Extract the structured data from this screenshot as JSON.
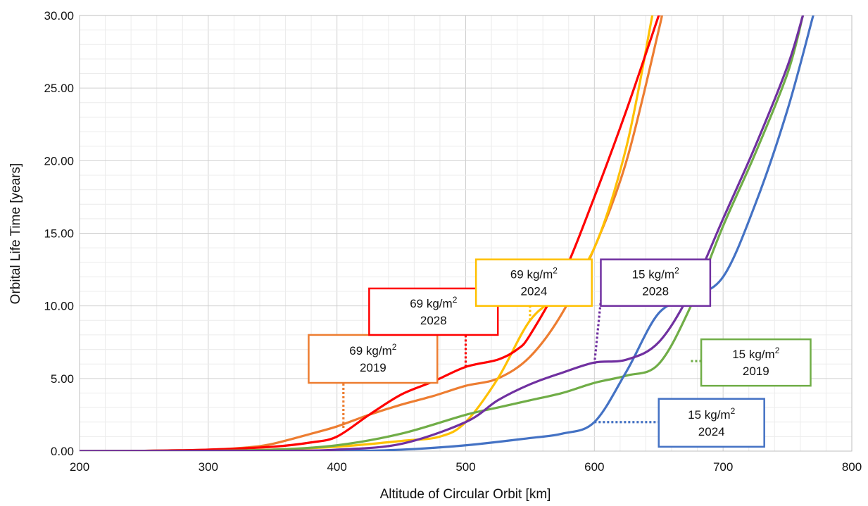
{
  "chart_data": {
    "type": "line",
    "xlabel": "Altitude of Circular Orbit [km]",
    "ylabel": "Orbital Life Time [years]",
    "xlim": [
      200,
      800
    ],
    "ylim": [
      0,
      30
    ],
    "x_ticks": [
      "200",
      "300",
      "400",
      "500",
      "600",
      "700",
      "800"
    ],
    "y_ticks": [
      "0.00",
      "5.00",
      "10.00",
      "15.00",
      "20.00",
      "25.00",
      "30.00"
    ],
    "grid": true,
    "series": [
      {
        "name": "69 kg/m2 2019",
        "color": "#ED7D31",
        "points": [
          [
            200,
            0
          ],
          [
            250,
            0.02
          ],
          [
            300,
            0.1
          ],
          [
            330,
            0.25
          ],
          [
            350,
            0.5
          ],
          [
            380,
            1.2
          ],
          [
            400,
            1.7
          ],
          [
            425,
            2.5
          ],
          [
            450,
            3.2
          ],
          [
            475,
            3.8
          ],
          [
            500,
            4.5
          ],
          [
            525,
            5.0
          ],
          [
            550,
            6.5
          ],
          [
            575,
            9.5
          ],
          [
            600,
            14.0
          ],
          [
            625,
            20.0
          ],
          [
            650,
            29.0
          ],
          [
            652,
            30.0
          ]
        ]
      },
      {
        "name": "69 kg/m2 2024",
        "color": "#FFC000",
        "points": [
          [
            200,
            0
          ],
          [
            300,
            0.02
          ],
          [
            350,
            0.1
          ],
          [
            400,
            0.3
          ],
          [
            450,
            0.7
          ],
          [
            480,
            1.0
          ],
          [
            500,
            2.0
          ],
          [
            525,
            5.0
          ],
          [
            550,
            9.0
          ],
          [
            575,
            11.0
          ],
          [
            600,
            14.0
          ],
          [
            625,
            21.0
          ],
          [
            645,
            30.0
          ]
        ]
      },
      {
        "name": "69 kg/m2 2028",
        "color": "#FF0000",
        "points": [
          [
            200,
            0
          ],
          [
            250,
            0.02
          ],
          [
            300,
            0.1
          ],
          [
            350,
            0.3
          ],
          [
            380,
            0.6
          ],
          [
            400,
            1.0
          ],
          [
            425,
            2.5
          ],
          [
            450,
            3.9
          ],
          [
            475,
            4.8
          ],
          [
            500,
            5.8
          ],
          [
            525,
            6.3
          ],
          [
            540,
            7.0
          ],
          [
            550,
            8.0
          ],
          [
            575,
            12.0
          ],
          [
            600,
            17.5
          ],
          [
            625,
            23.5
          ],
          [
            650,
            30.0
          ]
        ]
      },
      {
        "name": "15 kg/m2 2019",
        "color": "#70AD47",
        "points": [
          [
            200,
            0
          ],
          [
            300,
            0.02
          ],
          [
            350,
            0.1
          ],
          [
            400,
            0.4
          ],
          [
            450,
            1.2
          ],
          [
            500,
            2.5
          ],
          [
            525,
            3.0
          ],
          [
            550,
            3.5
          ],
          [
            575,
            4.0
          ],
          [
            600,
            4.7
          ],
          [
            625,
            5.2
          ],
          [
            650,
            6.0
          ],
          [
            675,
            10.0
          ],
          [
            700,
            15.5
          ],
          [
            725,
            20.5
          ],
          [
            750,
            26.0
          ],
          [
            762,
            30.0
          ]
        ]
      },
      {
        "name": "15 kg/m2 2024",
        "color": "#4472C4",
        "points": [
          [
            200,
            0
          ],
          [
            400,
            0.02
          ],
          [
            450,
            0.1
          ],
          [
            500,
            0.4
          ],
          [
            550,
            0.9
          ],
          [
            575,
            1.2
          ],
          [
            600,
            2.0
          ],
          [
            625,
            5.5
          ],
          [
            650,
            9.5
          ],
          [
            675,
            10.6
          ],
          [
            700,
            12.0
          ],
          [
            725,
            17.0
          ],
          [
            750,
            23.5
          ],
          [
            770,
            30.0
          ]
        ]
      },
      {
        "name": "15 kg/m2 2028",
        "color": "#7030A0",
        "points": [
          [
            200,
            0
          ],
          [
            350,
            0.02
          ],
          [
            400,
            0.1
          ],
          [
            450,
            0.5
          ],
          [
            500,
            2.0
          ],
          [
            525,
            3.5
          ],
          [
            550,
            4.6
          ],
          [
            575,
            5.4
          ],
          [
            600,
            6.1
          ],
          [
            625,
            6.3
          ],
          [
            650,
            7.5
          ],
          [
            675,
            11.0
          ],
          [
            700,
            16.0
          ],
          [
            725,
            21.0
          ],
          [
            750,
            26.5
          ],
          [
            762,
            30.0
          ]
        ]
      }
    ],
    "callouts": [
      {
        "series": "69 kg/m2 2019",
        "line1": "69 kg/m",
        "sup": "2",
        "line2": "2019",
        "color": "#ED7D31",
        "anchor": [
          405,
          1.6
        ],
        "box_x_km": [
          378,
          478
        ],
        "box_y_years": [
          8.0,
          4.7
        ]
      },
      {
        "series": "69 kg/m2 2028",
        "line1": "69 kg/m",
        "sup": "2",
        "line2": "2028",
        "color": "#FF0000",
        "anchor": [
          500,
          5.8
        ],
        "box_x_km": [
          425,
          525
        ],
        "box_y_years": [
          11.2,
          8.0
        ]
      },
      {
        "series": "69 kg/m2 2024",
        "line1": "69 kg/m",
        "sup": "2",
        "line2": "2024",
        "color": "#FFC000",
        "anchor": [
          550,
          9.0
        ],
        "box_x_km": [
          508,
          598
        ],
        "box_y_years": [
          13.2,
          10.0
        ]
      },
      {
        "series": "15 kg/m2 2028",
        "line1": "15 kg/m",
        "sup": "2",
        "line2": "2028",
        "color": "#7030A0",
        "anchor": [
          600,
          6.0
        ],
        "box_x_km": [
          605,
          690
        ],
        "box_y_years": [
          13.2,
          10.0
        ]
      },
      {
        "series": "15 kg/m2 2019",
        "line1": "15 kg/m",
        "sup": "2",
        "line2": "2019",
        "color": "#70AD47",
        "anchor": [
          675,
          6.2
        ],
        "box_x_km": [
          683,
          768
        ],
        "box_y_years": [
          7.7,
          4.5
        ]
      },
      {
        "series": "15 kg/m2 2024",
        "line1": "15 kg/m",
        "sup": "2",
        "line2": "2024",
        "color": "#4472C4",
        "anchor": [
          600,
          2.0
        ],
        "box_x_km": [
          650,
          732
        ],
        "box_y_years": [
          3.6,
          0.3
        ]
      }
    ]
  }
}
